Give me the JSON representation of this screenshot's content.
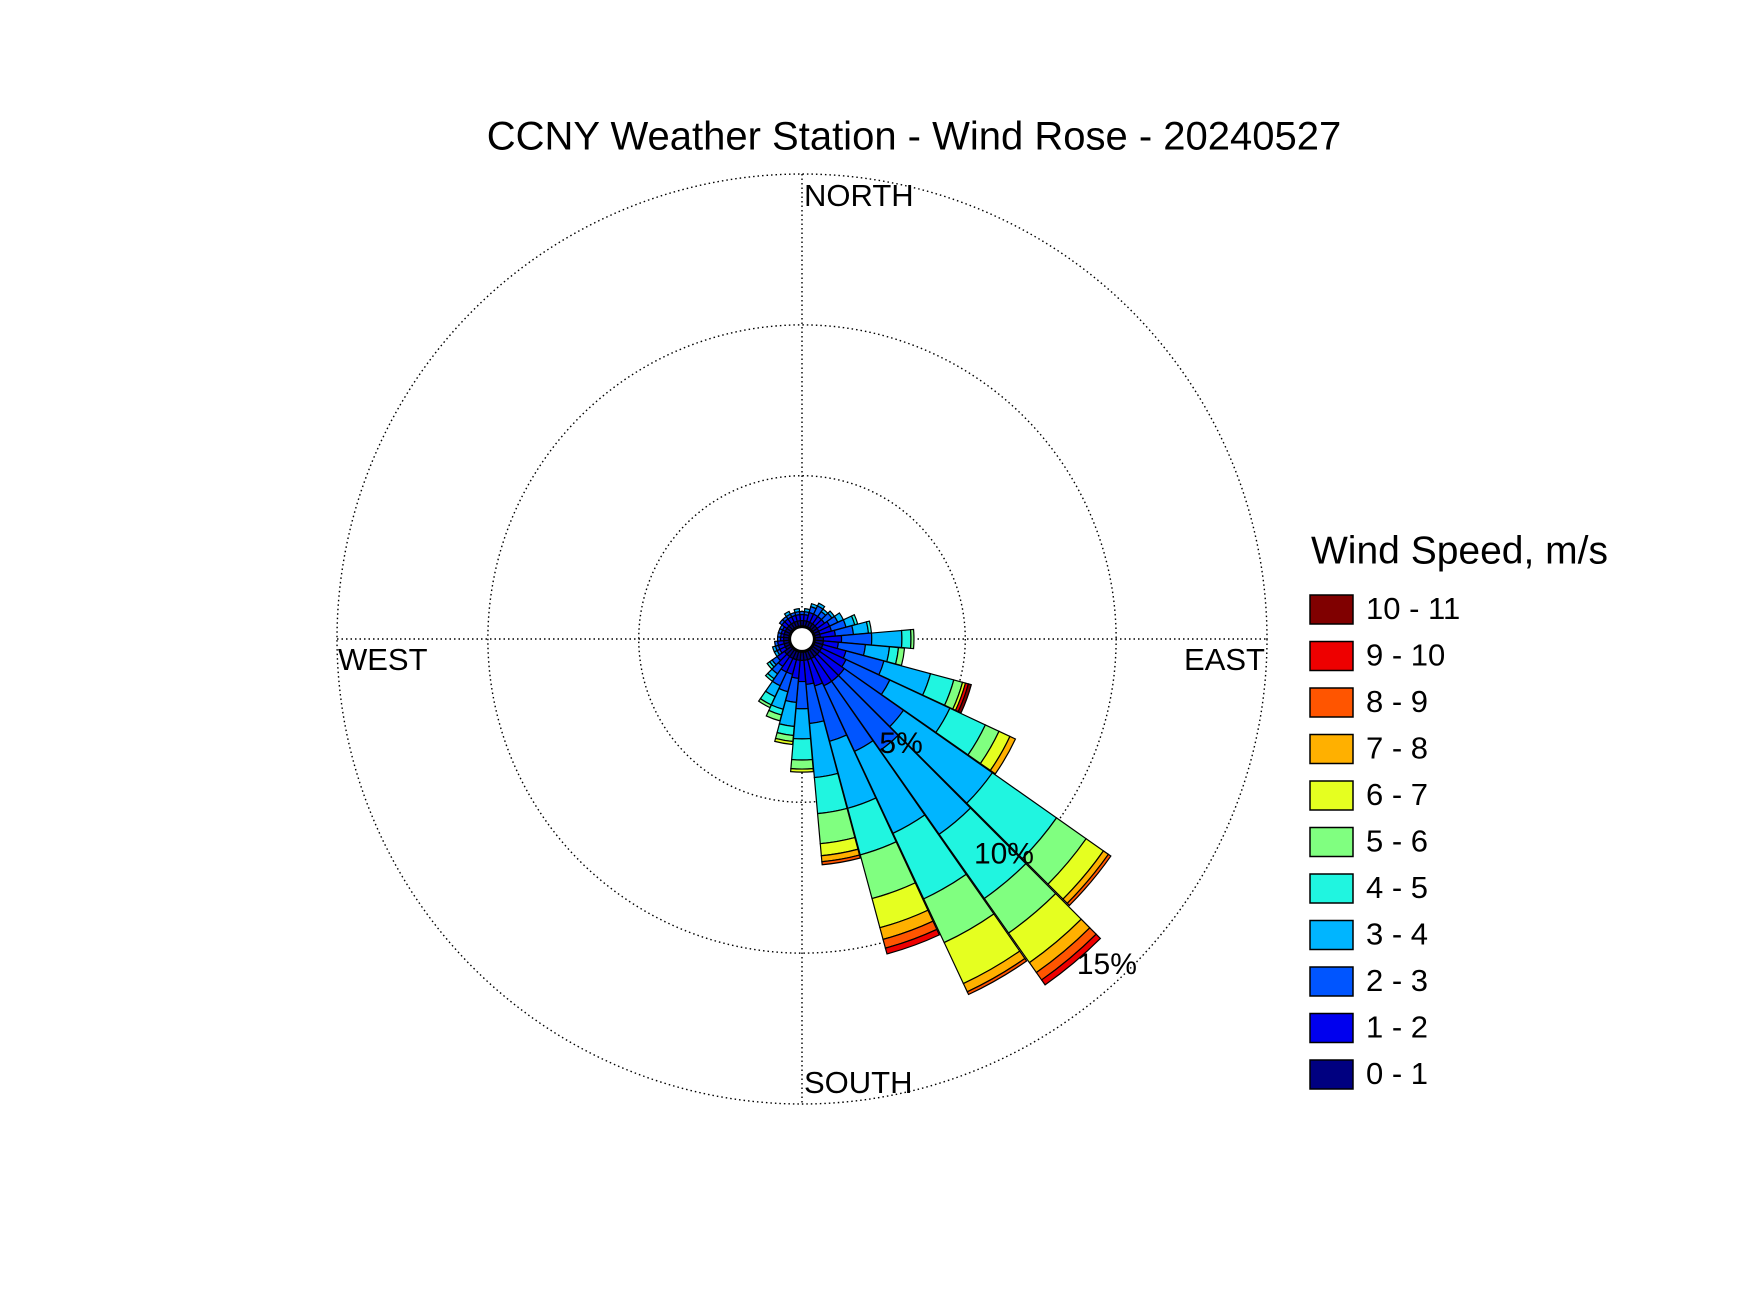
{
  "chart_data": {
    "type": "windrose",
    "title": "CCNY Weather Station - Wind Rose - 20240527",
    "legend_title": "Wind Speed, m/s",
    "direction_labels": {
      "north": "NORTH",
      "east": "EAST",
      "south": "SOUTH",
      "west": "WEST"
    },
    "x": [
      0,
      10,
      20,
      30,
      40,
      50,
      60,
      70,
      80,
      90,
      100,
      110,
      120,
      130,
      140,
      150,
      160,
      170,
      180,
      190,
      200,
      210,
      220,
      230,
      240,
      250,
      260,
      270,
      280,
      290,
      300,
      310,
      320,
      330,
      340,
      350
    ],
    "rlim": [
      0,
      15
    ],
    "rticks": [
      {
        "value": 5,
        "label": "5%"
      },
      {
        "value": 10,
        "label": "10%"
      },
      {
        "value": 15,
        "label": "15%"
      }
    ],
    "grid": true,
    "series": [
      {
        "name": "10 - 11",
        "color": "#800000",
        "values": [
          0,
          0,
          0,
          0,
          0,
          0,
          0,
          0,
          0,
          0,
          0,
          0.1,
          0,
          0,
          0,
          0,
          0,
          0,
          0,
          0,
          0,
          0,
          0,
          0,
          0,
          0,
          0,
          0,
          0,
          0,
          0,
          0,
          0,
          0,
          0,
          0
        ]
      },
      {
        "name": "9 - 10",
        "color": "#ee0000",
        "values": [
          0,
          0,
          0,
          0,
          0,
          0,
          0,
          0,
          0,
          0,
          0,
          0.1,
          0,
          0,
          0.2,
          0,
          0.2,
          0,
          0,
          0,
          0,
          0,
          0,
          0,
          0,
          0,
          0,
          0,
          0,
          0,
          0,
          0,
          0,
          0,
          0,
          0
        ]
      },
      {
        "name": "8 - 9",
        "color": "#ff5500",
        "values": [
          0,
          0,
          0,
          0,
          0,
          0,
          0,
          0,
          0,
          0,
          0,
          0,
          0,
          0.1,
          0.3,
          0.1,
          0.3,
          0.1,
          0,
          0,
          0,
          0,
          0,
          0,
          0,
          0,
          0,
          0,
          0,
          0,
          0,
          0,
          0,
          0,
          0,
          0
        ]
      },
      {
        "name": "7 - 8",
        "color": "#ffb000",
        "values": [
          0,
          0,
          0,
          0,
          0,
          0,
          0,
          0,
          0,
          0,
          0,
          0,
          0.2,
          0.2,
          0.4,
          0.3,
          0.4,
          0.2,
          0,
          0,
          0,
          0,
          0,
          0,
          0,
          0,
          0,
          0,
          0,
          0,
          0,
          0,
          0,
          0,
          0,
          0
        ]
      },
      {
        "name": "6 - 7",
        "color": "#e5ff20",
        "values": [
          0,
          0,
          0,
          0,
          0,
          0,
          0,
          0,
          0,
          0,
          0,
          0.1,
          0.4,
          0.7,
          1.2,
          1.5,
          1.0,
          0.4,
          0.1,
          0.1,
          0,
          0,
          0,
          0,
          0,
          0,
          0,
          0,
          0,
          0,
          0,
          0,
          0,
          0,
          0,
          0
        ]
      },
      {
        "name": "5 - 6",
        "color": "#80ff80",
        "values": [
          0,
          0,
          0,
          0,
          0,
          0,
          0,
          0,
          0,
          0.1,
          0.2,
          0.3,
          0.5,
          1.2,
          1.4,
          1.6,
          1.5,
          1.0,
          0.3,
          0.2,
          0.2,
          0.1,
          0,
          0,
          0,
          0,
          0,
          0,
          0,
          0,
          0,
          0,
          0,
          0,
          0,
          0
        ]
      },
      {
        "name": "4 - 5",
        "color": "#20f5e0",
        "values": [
          0,
          0,
          0,
          0,
          0,
          0,
          0,
          0.1,
          0.1,
          0.3,
          0.3,
          0.8,
          1.3,
          2.6,
          2.6,
          2.4,
          1.6,
          1.2,
          0.7,
          0.3,
          0.2,
          0.3,
          0.1,
          0.1,
          0,
          0,
          0,
          0,
          0,
          0,
          0,
          0,
          0,
          0,
          0,
          0
        ]
      },
      {
        "name": "3 - 4",
        "color": "#00b5ff",
        "values": [
          0,
          0.1,
          0.1,
          0.1,
          0.1,
          0.1,
          0.2,
          0.3,
          0.5,
          1.0,
          0.8,
          1.6,
          2.2,
          3.6,
          3.4,
          3.0,
          2.3,
          1.8,
          1.0,
          0.8,
          0.6,
          0.4,
          0.2,
          0.1,
          0.1,
          0.1,
          0,
          0,
          0,
          0,
          0,
          0,
          0,
          0.1,
          0,
          0.1
        ]
      },
      {
        "name": "2 - 3",
        "color": "#0055ff",
        "values": [
          0.1,
          0.1,
          0.2,
          0.3,
          0.2,
          0.3,
          0.3,
          0.5,
          0.6,
          1.0,
          0.9,
          1.3,
          1.6,
          2.4,
          2.8,
          2.4,
          1.9,
          1.3,
          0.9,
          0.8,
          0.6,
          0.5,
          0.3,
          0.2,
          0.1,
          0.1,
          0.1,
          0.1,
          0.1,
          0.1,
          0.1,
          0.1,
          0.1,
          0.1,
          0.1,
          0.1
        ]
      },
      {
        "name": "1 - 2",
        "color": "#0000ee",
        "values": [
          0.2,
          0.2,
          0.3,
          0.3,
          0.3,
          0.3,
          0.4,
          0.4,
          0.5,
          0.6,
          0.5,
          0.8,
          0.9,
          1.0,
          1.0,
          1.0,
          0.9,
          0.8,
          0.7,
          0.6,
          0.5,
          0.5,
          0.4,
          0.3,
          0.2,
          0.2,
          0.2,
          0.1,
          0.1,
          0.1,
          0.1,
          0.2,
          0.2,
          0.2,
          0.2,
          0.2
        ]
      },
      {
        "name": "0 - 1",
        "color": "#000080",
        "values": [
          0.2,
          0.2,
          0.2,
          0.2,
          0.2,
          0.2,
          0.2,
          0.2,
          0.2,
          0.3,
          0.3,
          0.3,
          0.3,
          0.3,
          0.3,
          0.3,
          0.3,
          0.3,
          0.3,
          0.3,
          0.3,
          0.3,
          0.3,
          0.3,
          0.2,
          0.2,
          0.2,
          0.2,
          0.2,
          0.2,
          0.2,
          0.2,
          0.2,
          0.2,
          0.2,
          0.2
        ]
      }
    ]
  }
}
